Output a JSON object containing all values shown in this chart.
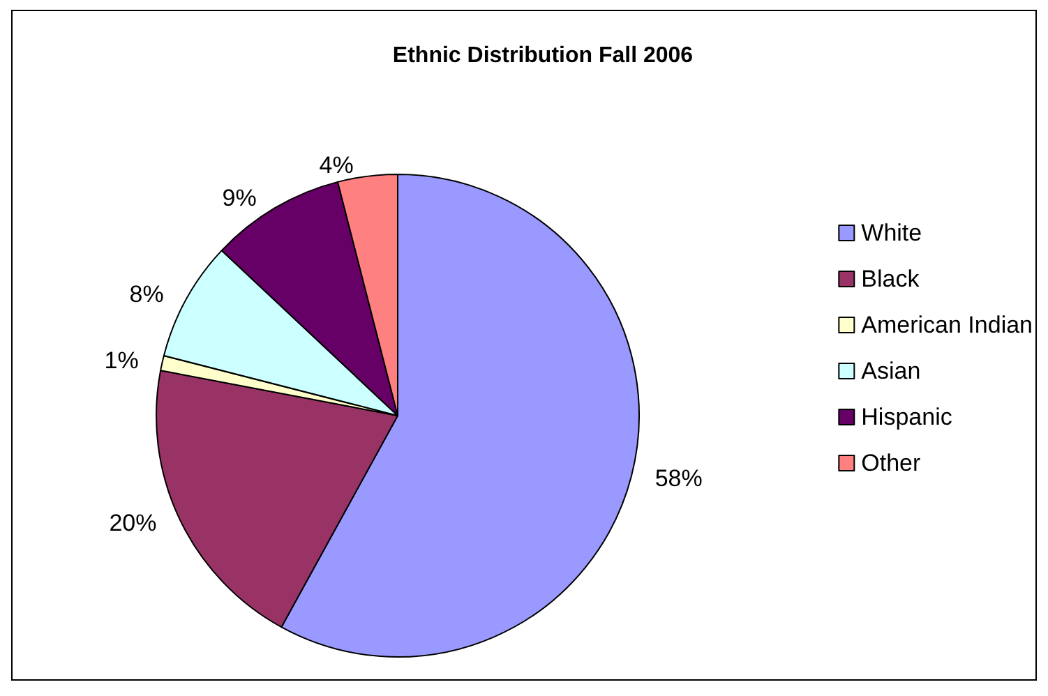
{
  "chart_data": {
    "type": "pie",
    "title": "Ethnic Distribution Fall 2006",
    "categories": [
      "White",
      "Black",
      "American Indian",
      "Asian",
      "Hispanic",
      "Other"
    ],
    "values": [
      58,
      20,
      1,
      8,
      9,
      4
    ],
    "colors": [
      "#9999ff",
      "#993366",
      "#ffffcc",
      "#ccffff",
      "#660066",
      "#ff8080"
    ],
    "value_labels": [
      "58%",
      "20%",
      "1%",
      "8%",
      "9%",
      "4%"
    ],
    "legend": "right"
  }
}
